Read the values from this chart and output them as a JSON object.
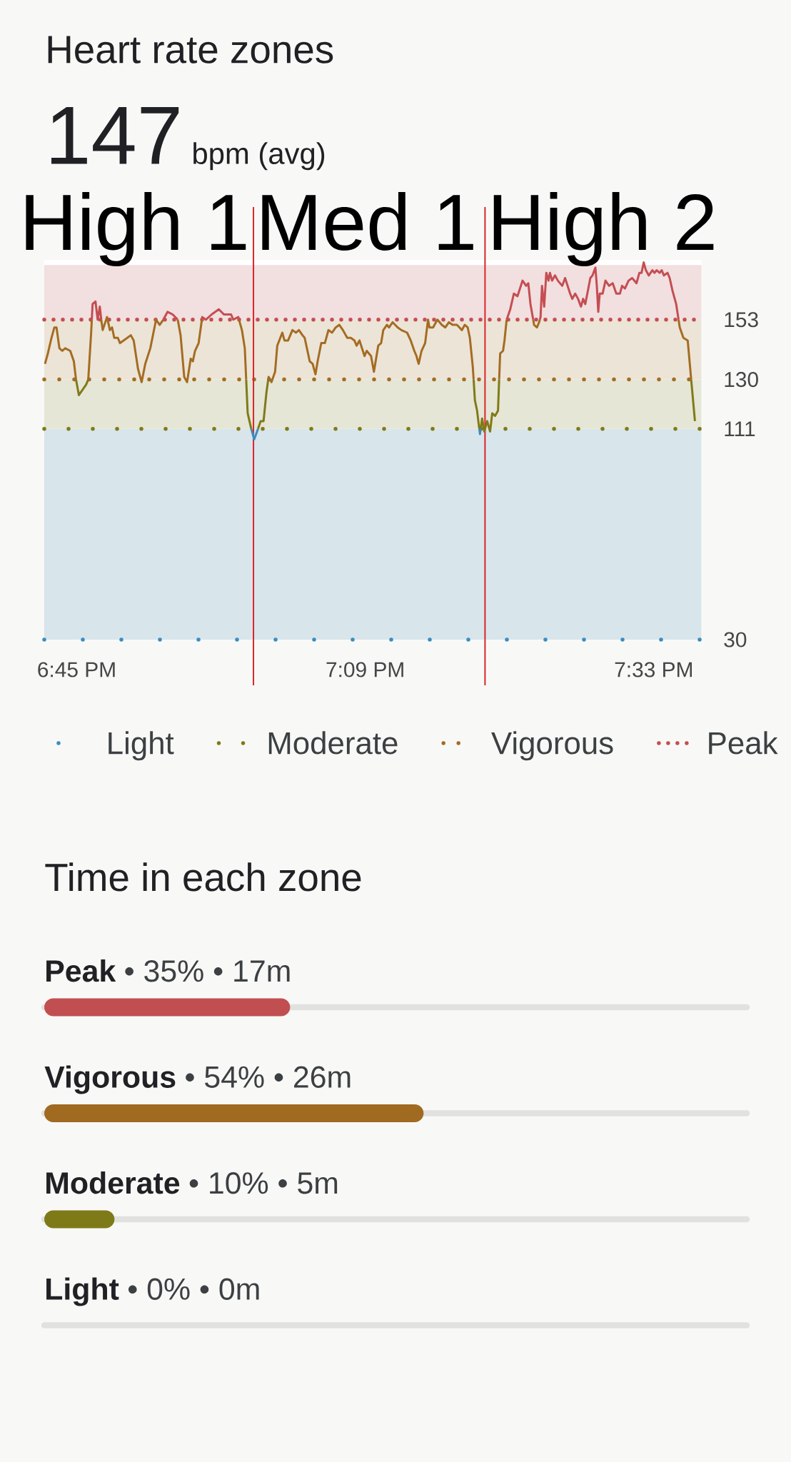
{
  "chart_data": [
    {
      "type": "line",
      "title": "Heart rate zones",
      "subtitle": "147",
      "annotations": [
        "bpm (avg)",
        "High 1",
        "Med 1",
        "High 2"
      ],
      "series": [
        {
          "color": "#3a8dbf",
          "x": [
            18.992,
            18.996,
            19.0,
            19.0013,
            19.005,
            19.3081,
            19.309,
            19.31
          ],
          "values": [
            111,
            107,
            110,
            111,
            null,
            111,
            109,
            111
          ]
        },
        {
          "color": "#807a18",
          "x": [
            18.749,
            18.753,
            18.758,
            18.763,
            18.766,
            18.77,
            18.9849,
            18.987,
            18.992,
            18.996,
            19.0013,
            19.005,
            19.009,
            19.013,
            19.0155,
            19.016,
            19.3002,
            19.302,
            19.305,
            19.3081,
            19.309,
            19.31,
            19.312,
            19.315,
            19.319,
            19.323,
            19.326,
            19.33,
            19.334,
            19.3356,
            19.337,
            19.6018,
            19.607
          ],
          "values": [
            130,
            124,
            126,
            128,
            130,
            null,
            130,
            117,
            111,
            null,
            111,
            114,
            114,
            125,
            130,
            null,
            130,
            122,
            118,
            111,
            null,
            111,
            115,
            110,
            114,
            110,
            117,
            116,
            118,
            130,
            null,
            130,
            114
          ]
        },
        {
          "color": "#a46c22",
          "x": [
            18.706,
            18.71,
            18.715,
            18.719,
            18.722,
            18.726,
            18.73,
            18.734,
            18.741,
            18.746,
            18.749,
            18.753,
            18.766,
            18.77,
            18.7709,
            18.776,
            18.784,
            18.786,
            18.792,
            18.796,
            18.799,
            18.802,
            18.807,
            18.81,
            18.815,
            18.825,
            18.829,
            18.835,
            18.84,
            18.845,
            18.852,
            18.86,
            18.865,
            18.87,
            18.876,
            18.89,
            18.894,
            18.899,
            18.903,
            18.908,
            18.911,
            18.914,
            18.919,
            18.9235,
            18.924,
            18.975,
            18.979,
            18.983,
            18.9849,
            18.987,
            19.0155,
            19.016,
            19.02,
            19.025,
            19.028,
            19.035,
            19.038,
            19.043,
            19.049,
            19.054,
            19.058,
            19.063,
            19.066,
            19.073,
            19.077,
            19.081,
            19.084,
            19.089,
            19.094,
            19.099,
            19.104,
            19.109,
            19.114,
            19.119,
            19.125,
            19.13,
            19.135,
            19.138,
            19.142,
            19.149,
            19.152,
            19.158,
            19.162,
            19.168,
            19.172,
            19.175,
            19.18,
            19.183,
            19.188,
            19.195,
            19.2,
            19.208,
            19.213,
            19.218,
            19.221,
            19.224,
            19.228,
            19.233,
            19.237,
            19.239,
            19.244,
            19.25,
            19.256,
            19.261,
            19.266,
            19.271,
            19.277,
            19.284,
            19.288,
            19.292,
            19.295,
            19.299,
            19.3002,
            19.302,
            19.3356,
            19.337,
            19.341,
            19.343,
            19.346,
            19.351,
            19.3828,
            19.384,
            19.388,
            19.391,
            19.392,
            19.393,
            19.5843,
            19.586,
            19.591,
            19.597,
            19.6018
          ],
          "values": [
            136,
            140,
            146,
            150,
            150,
            142,
            141,
            142,
            141,
            137,
            130,
            null,
            130,
            148,
            153,
            null,
            153,
            149,
            154,
            149,
            150,
            146,
            146,
            144,
            145,
            147,
            145,
            134,
            129,
            136,
            142,
            153,
            151,
            153,
            null,
            153,
            147,
            131,
            129,
            138,
            137,
            141,
            144,
            153,
            null,
            153,
            149,
            142,
            130,
            null,
            130,
            131,
            129,
            133,
            143,
            148,
            145,
            145,
            149,
            148,
            149,
            147,
            146,
            137,
            136,
            132,
            137,
            144,
            144,
            149,
            148,
            150,
            151,
            149,
            146,
            146,
            145,
            143,
            145,
            139,
            141,
            139,
            133,
            143,
            144,
            149,
            151,
            150,
            152,
            150,
            149,
            148,
            145,
            141,
            139,
            136,
            141,
            144,
            153,
            150,
            150,
            153,
            151,
            150,
            152,
            151,
            151,
            149,
            151,
            150,
            146,
            135,
            130,
            null,
            130,
            140,
            141,
            145,
            153,
            null,
            153,
            151,
            150,
            152,
            153,
            null,
            153,
            150,
            146,
            145,
            130
          ]
        },
        {
          "color": "#c44e52",
          "x": [
            18.7709,
            18.772,
            18.776,
            18.779,
            18.782,
            18.784,
            18.786,
            18.87,
            18.876,
            18.883,
            18.89,
            18.894,
            18.9235,
            18.924,
            18.929,
            18.937,
            18.947,
            18.954,
            18.964,
            18.967,
            18.974,
            18.975,
            18.979,
            19.346,
            19.351,
            19.356,
            19.361,
            19.368,
            19.373,
            19.376,
            19.379,
            19.3828,
            19.384,
            19.392,
            19.393,
            19.395,
            19.398,
            19.401,
            19.404,
            19.406,
            19.409,
            19.413,
            19.417,
            19.423,
            19.427,
            19.434,
            19.437,
            19.441,
            19.445,
            19.449,
            19.452,
            19.455,
            19.462,
            19.465,
            19.469,
            19.471,
            19.473,
            19.475,
            19.479,
            19.483,
            19.488,
            19.493,
            19.498,
            19.503,
            19.506,
            19.51,
            19.515,
            19.52,
            19.526,
            19.53,
            19.533,
            19.536,
            19.539,
            19.543,
            19.548,
            19.551,
            19.554,
            19.558,
            19.561,
            19.564,
            19.569,
            19.572,
            19.576,
            19.581,
            19.5843
          ],
          "values": [
            153,
            159,
            160,
            153,
            158,
            153,
            null,
            153,
            156,
            155,
            153,
            null,
            153,
            154,
            153,
            155,
            157,
            155,
            155,
            153,
            154,
            153,
            null,
            153,
            157,
            163,
            162,
            168,
            166,
            167,
            159,
            153,
            null,
            153,
            154,
            166,
            158,
            171,
            168,
            171,
            168,
            170,
            168,
            166,
            169,
            163,
            161,
            163,
            161,
            158,
            161,
            159,
            169,
            170,
            173,
            166,
            156,
            163,
            163,
            168,
            166,
            167,
            163,
            163,
            166,
            165,
            168,
            169,
            167,
            171,
            171,
            175,
            172,
            170,
            172,
            171,
            172,
            171,
            172,
            170,
            171,
            169,
            164,
            159,
            153
          ]
        }
      ],
      "xlim": [
        18.705,
        19.616
      ],
      "xticks": [
        {
          "value": 18.75,
          "label": "6:45 PM"
        },
        {
          "value": 19.15,
          "label": "7:09 PM"
        },
        {
          "value": 19.55,
          "label": "7:33 PM"
        }
      ],
      "ylim": [
        30,
        176
      ],
      "yticks": [
        30,
        111,
        130,
        153
      ],
      "bands": [
        {
          "axis": "y",
          "from": 30,
          "to": 111,
          "color": "#d8e5eb"
        },
        {
          "axis": "y",
          "from": 111,
          "to": 130,
          "color": "#e5e6d6"
        },
        {
          "axis": "y",
          "from": 130,
          "to": 153,
          "color": "#ece4d7"
        },
        {
          "axis": "y",
          "from": 153,
          "to": 174,
          "color": "#f2dfe0"
        }
      ],
      "ref_lines": [
        {
          "axis": "y",
          "value": 30,
          "label": "Light",
          "color": "#3a8dbf",
          "line_style": "dotted"
        },
        {
          "axis": "y",
          "value": 111,
          "label": "Moderate",
          "color": "#807a18",
          "line_style": "dotted"
        },
        {
          "axis": "y",
          "value": 130,
          "label": "Vigorous",
          "color": "#a46c22",
          "line_style": "dotted"
        },
        {
          "axis": "y",
          "value": 153,
          "label": "Peak",
          "color": "#c44e52",
          "line_style": "dotted"
        },
        {
          "axis": "x",
          "value": 18.995,
          "color": "#d9262b",
          "line_style": "solid"
        },
        {
          "axis": "x",
          "value": 19.316,
          "color": "#d9262b",
          "line_style": "solid"
        }
      ],
      "legend": "bottom"
    },
    {
      "type": "bar",
      "orientation": "horizontal",
      "title": "Time in each zone",
      "categories": [
        "Peak",
        "Vigorous",
        "Moderate",
        "Light"
      ],
      "values": [
        35,
        54,
        10,
        0
      ],
      "value_labels": [
        "• 35% • 17m",
        "• 54% • 26m",
        "• 10% • 5m",
        "• 0% • 0m"
      ],
      "colors": [
        "#c14f51",
        "#a16a21",
        "#7e7a18",
        "#3a8dbf"
      ],
      "xlim": [
        0,
        100
      ],
      "grid": "y",
      "tick_labels": "y"
    }
  ]
}
